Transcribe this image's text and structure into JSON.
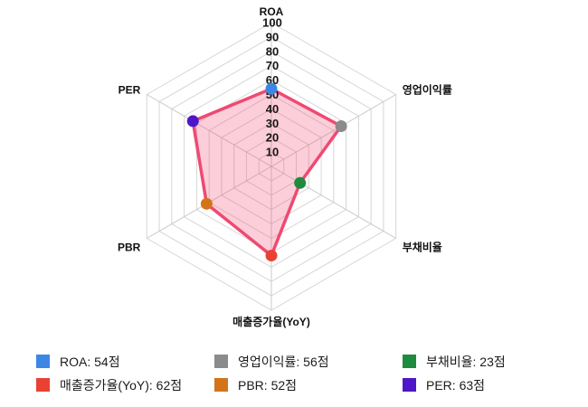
{
  "chart_data": {
    "type": "radar",
    "title": "",
    "categories": [
      "ROA",
      "영업이익률",
      "부채비율",
      "매출증가율(YoY)",
      "PBR",
      "PER"
    ],
    "category_keys": [
      "roa",
      "op-margin",
      "debt-ratio",
      "revenue-growth-yoy",
      "pbr",
      "per"
    ],
    "series": [
      {
        "name": "score",
        "values": [
          54,
          56,
          23,
          62,
          52,
          63
        ]
      }
    ],
    "point_colors": [
      "#3d86e4",
      "#8b8b8b",
      "#1d8c3f",
      "#e94235",
      "#d3741a",
      "#4d17c9"
    ],
    "scale": {
      "min": 0,
      "max": 100,
      "step": 10,
      "ticks": [
        10,
        20,
        30,
        40,
        50,
        60,
        70,
        80,
        90,
        100
      ]
    },
    "polygon": {
      "stroke": "#f04972",
      "fill": "rgba(240,73,114,0.27)"
    },
    "grid_color": "#d6d6d6",
    "spoke_color": "#c9c9c9",
    "grid": "hexagonal-web",
    "legend_position": "bottom"
  },
  "legend": {
    "items": [
      {
        "label": "ROA: 54점",
        "color": "#3d86e4"
      },
      {
        "label": "영업이익률: 56점",
        "color": "#8b8b8b"
      },
      {
        "label": "부채비율: 23점",
        "color": "#1d8c3f"
      },
      {
        "label": "매출증가율(YoY): 62점",
        "color": "#e94235"
      },
      {
        "label": "PBR: 52점",
        "color": "#d3741a"
      },
      {
        "label": "PER: 63점",
        "color": "#4d17c9"
      }
    ]
  }
}
